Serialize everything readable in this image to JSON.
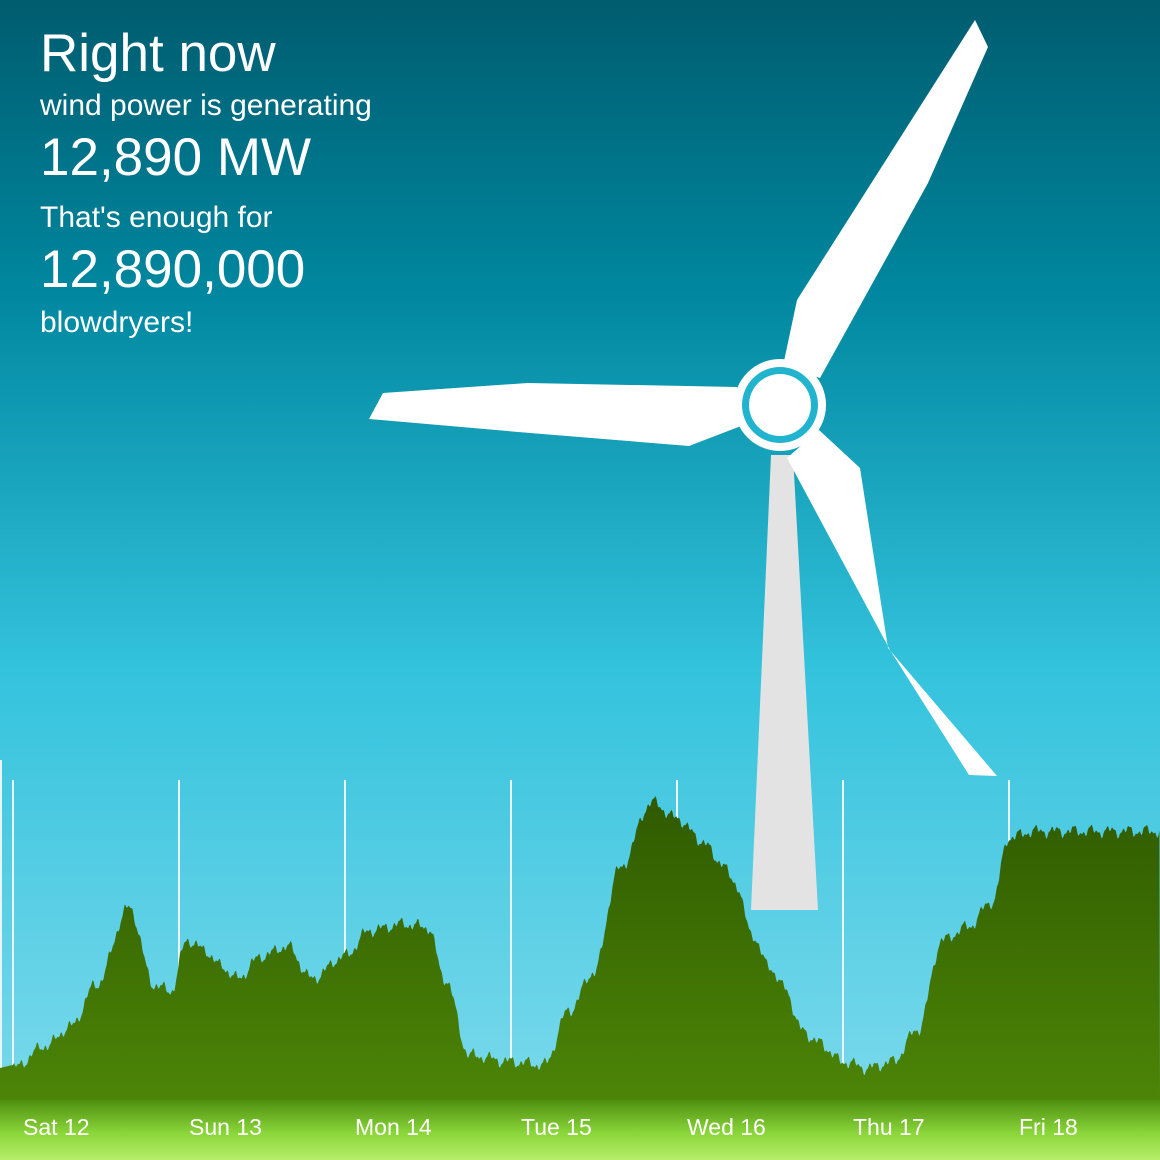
{
  "headline": {
    "title": "Right now",
    "subtitle": "wind power is generating",
    "power": "12,890 MW",
    "comparison_intro": "That's enough for",
    "count": "12,890,000",
    "item": "blowdryers!"
  },
  "chart_data": {
    "type": "area",
    "x_categories": [
      "Sat 12",
      "Sun 13",
      "Mon 14",
      "Tue 15",
      "Wed 16",
      "Thu 17",
      "Fri 18"
    ],
    "x_range": [
      0,
      7
    ],
    "ylim": [
      0,
      1
    ],
    "series": [
      {
        "x": [
          0,
          0.2,
          0.35,
          0.5,
          0.7,
          0.85,
          0.95,
          1.05,
          1.15,
          1.25,
          1.35,
          1.5,
          1.65,
          1.8,
          2.0,
          2.15,
          2.35,
          2.5,
          2.6,
          2.75,
          3.0,
          3.2,
          3.35,
          3.5,
          3.65,
          3.85,
          4.0,
          4.15,
          4.25,
          4.35,
          4.45,
          4.55,
          4.65,
          4.75,
          4.85,
          5.0,
          5.15,
          5.3,
          5.45,
          5.6,
          5.75,
          5.9,
          6.0,
          6.15,
          6.3,
          6.5,
          6.7,
          6.85,
          7.0
        ],
        "values": [
          0.1,
          0.17,
          0.23,
          0.36,
          0.6,
          0.36,
          0.34,
          0.5,
          0.47,
          0.42,
          0.38,
          0.45,
          0.48,
          0.38,
          0.45,
          0.53,
          0.55,
          0.54,
          0.38,
          0.14,
          0.12,
          0.11,
          0.28,
          0.4,
          0.72,
          0.93,
          0.88,
          0.81,
          0.75,
          0.68,
          0.52,
          0.42,
          0.35,
          0.22,
          0.18,
          0.12,
          0.1,
          0.12,
          0.22,
          0.5,
          0.54,
          0.62,
          0.82,
          0.84,
          0.84,
          0.84,
          0.84,
          0.84,
          0.84
        ]
      }
    ]
  },
  "colors": {
    "area": "#3b6b04",
    "gridline": "#e8f4f6",
    "blade": "#ffffff",
    "tower": "#e3e3e3"
  }
}
